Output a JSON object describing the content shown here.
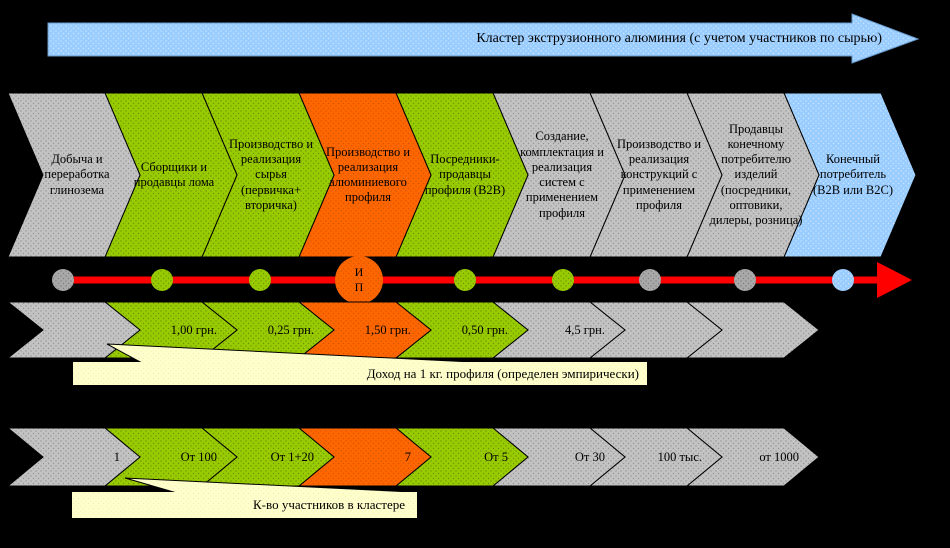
{
  "palette": {
    "green": "#99CC00",
    "orange": "#FF6600",
    "gray": "#C0C0C0",
    "dark_gray": "#A8A8A8",
    "blue": "#99CCFF",
    "red": "#FF0000",
    "cream": "#FFFFCC",
    "background": "#000000"
  },
  "banner": {
    "label": "Кластер экструзионного алюминия (с учетом участников по сырью)"
  },
  "chain": {
    "stages": [
      {
        "label": "Добыча и переработка глинозема",
        "color": "gray"
      },
      {
        "label": "Сборщики и продавцы лома",
        "color": "green"
      },
      {
        "label": "Производство и реализация сырья (первичка+ вторичка)",
        "color": "green"
      },
      {
        "label": "Производство и реализация алюминиевого профиля",
        "color": "orange"
      },
      {
        "label": "Посредники-продавцы профиля (В2В)",
        "color": "green"
      },
      {
        "label": "Создание, комплектация и реализация систем с применением профиля",
        "color": "gray"
      },
      {
        "label": "Производство и реализация конструкций с применением профиля",
        "color": "gray"
      },
      {
        "label": "Продавцы конечному потребителю изделий (посредники, оптовики, дилеры, розница)",
        "color": "gray"
      },
      {
        "label": "Конечный потребитель (В2В или В2С)",
        "color": "blue"
      }
    ]
  },
  "marker_line": {
    "profile_marker_label": "И\nП",
    "dots": [
      {
        "color": "dark_gray"
      },
      {
        "color": "green"
      },
      {
        "color": "green"
      },
      {
        "color": "orange",
        "large": true
      },
      {
        "color": "green"
      },
      {
        "color": "green"
      },
      {
        "color": "dark_gray"
      },
      {
        "color": "dark_gray"
      },
      {
        "color": "blue"
      }
    ]
  },
  "income_row": {
    "items": [
      {
        "label": "",
        "color": "gray"
      },
      {
        "label": "1,00 грн.",
        "color": "green"
      },
      {
        "label": "0,25 грн.",
        "color": "green"
      },
      {
        "label": "1,50 грн.",
        "color": "orange"
      },
      {
        "label": "0,50 грн.",
        "color": "green"
      },
      {
        "label": "4,5 грн.",
        "color": "gray"
      },
      {
        "label": "",
        "color": "gray"
      },
      {
        "label": "",
        "color": "gray"
      }
    ],
    "callout": "Доход на 1 кг. профиля (определен эмпирически)"
  },
  "count_row": {
    "items": [
      {
        "label": "1",
        "color": "gray"
      },
      {
        "label": "От 100",
        "color": "green"
      },
      {
        "label": "От 1+20",
        "color": "green"
      },
      {
        "label": "7",
        "color": "orange"
      },
      {
        "label": "От 5",
        "color": "green"
      },
      {
        "label": "От 30",
        "color": "gray"
      },
      {
        "label": "100 тыс.",
        "color": "gray"
      },
      {
        "label": "от 1000",
        "color": "gray"
      }
    ],
    "callout": "К-во участников в кластере"
  }
}
